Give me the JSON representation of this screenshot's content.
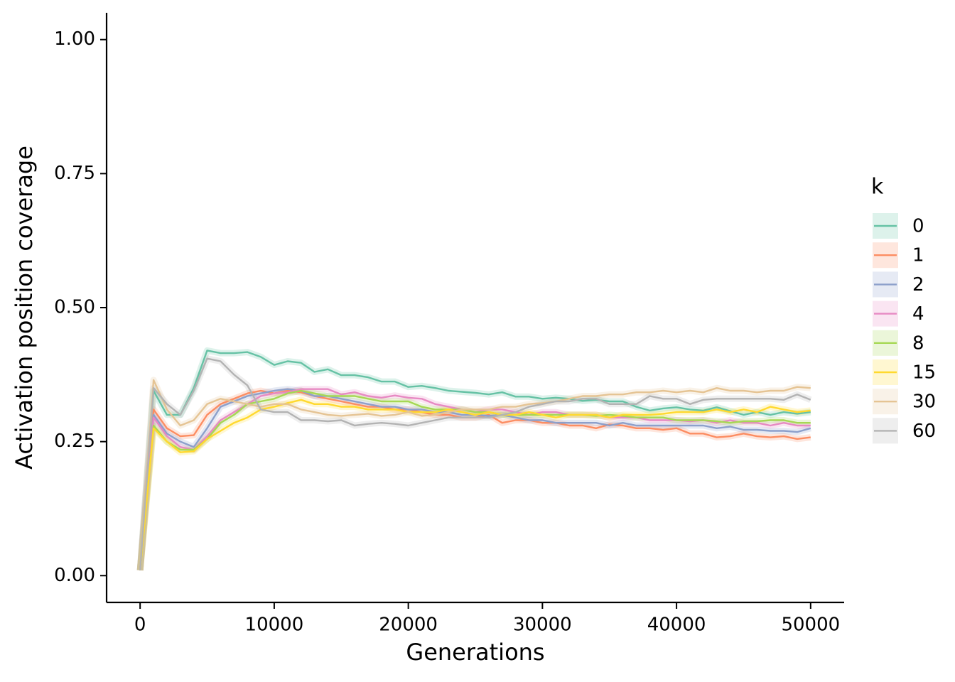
{
  "chart_data": {
    "type": "line",
    "x_label": "Generations",
    "y_label": "Activation position coverage",
    "legend_title": "k",
    "legend": "right",
    "xlim": [
      -2500,
      52500
    ],
    "ylim": [
      -0.05,
      1.05
    ],
    "xticks": [
      0,
      10000,
      20000,
      30000,
      40000,
      50000
    ],
    "yticks": [
      {
        "value": 0,
        "label": "0.00"
      },
      {
        "value": 0.25,
        "label": "0.25"
      },
      {
        "value": 0.5,
        "label": "0.50"
      },
      {
        "value": 0.75,
        "label": "0.75"
      },
      {
        "value": 1,
        "label": "1.00"
      }
    ],
    "x": [
      0,
      1000,
      2000,
      3000,
      4000,
      5000,
      6000,
      7000,
      8000,
      9000,
      10000,
      11000,
      12000,
      13000,
      14000,
      15000,
      16000,
      17000,
      18000,
      19000,
      20000,
      21000,
      22000,
      23000,
      24000,
      25000,
      26000,
      27000,
      28000,
      29000,
      30000,
      31000,
      32000,
      33000,
      34000,
      35000,
      36000,
      37000,
      38000,
      39000,
      40000,
      41000,
      42000,
      43000,
      44000,
      45000,
      46000,
      47000,
      48000,
      49000,
      50000
    ],
    "series": [
      {
        "name": "0",
        "color": "#66c2a5",
        "values": [
          0.01,
          0.345,
          0.3,
          0.3,
          0.35,
          0.42,
          0.415,
          0.415,
          0.417,
          0.408,
          0.393,
          0.4,
          0.397,
          0.38,
          0.385,
          0.374,
          0.374,
          0.37,
          0.362,
          0.362,
          0.352,
          0.354,
          0.35,
          0.345,
          0.343,
          0.341,
          0.338,
          0.342,
          0.334,
          0.334,
          0.33,
          0.332,
          0.33,
          0.326,
          0.328,
          0.325,
          0.325,
          0.315,
          0.308,
          0.312,
          0.314,
          0.31,
          0.308,
          0.314,
          0.307,
          0.3,
          0.305,
          0.3,
          0.305,
          0.302,
          0.305
        ]
      },
      {
        "name": "1",
        "color": "#fc8d62",
        "values": [
          0.01,
          0.31,
          0.275,
          0.26,
          0.262,
          0.3,
          0.32,
          0.33,
          0.34,
          0.345,
          0.34,
          0.345,
          0.342,
          0.335,
          0.33,
          0.325,
          0.32,
          0.315,
          0.315,
          0.31,
          0.31,
          0.305,
          0.3,
          0.3,
          0.295,
          0.295,
          0.3,
          0.285,
          0.29,
          0.29,
          0.285,
          0.285,
          0.28,
          0.28,
          0.275,
          0.282,
          0.28,
          0.275,
          0.275,
          0.272,
          0.275,
          0.265,
          0.265,
          0.258,
          0.26,
          0.265,
          0.26,
          0.258,
          0.26,
          0.255,
          0.258
        ]
      },
      {
        "name": "2",
        "color": "#8da0cb",
        "values": [
          0.01,
          0.3,
          0.265,
          0.25,
          0.24,
          0.275,
          0.315,
          0.325,
          0.335,
          0.34,
          0.345,
          0.348,
          0.345,
          0.335,
          0.335,
          0.33,
          0.325,
          0.32,
          0.315,
          0.315,
          0.31,
          0.31,
          0.305,
          0.305,
          0.3,
          0.3,
          0.298,
          0.3,
          0.295,
          0.29,
          0.29,
          0.285,
          0.285,
          0.285,
          0.285,
          0.28,
          0.285,
          0.28,
          0.28,
          0.28,
          0.28,
          0.28,
          0.28,
          0.275,
          0.278,
          0.272,
          0.272,
          0.27,
          0.27,
          0.268,
          0.275
        ]
      },
      {
        "name": "4",
        "color": "#e78ac3",
        "values": [
          0.01,
          0.295,
          0.26,
          0.24,
          0.235,
          0.26,
          0.29,
          0.305,
          0.32,
          0.335,
          0.34,
          0.342,
          0.348,
          0.348,
          0.348,
          0.338,
          0.342,
          0.335,
          0.332,
          0.336,
          0.332,
          0.33,
          0.32,
          0.315,
          0.31,
          0.305,
          0.31,
          0.31,
          0.305,
          0.3,
          0.305,
          0.305,
          0.3,
          0.3,
          0.3,
          0.295,
          0.295,
          0.295,
          0.29,
          0.29,
          0.29,
          0.288,
          0.29,
          0.285,
          0.29,
          0.285,
          0.285,
          0.28,
          0.285,
          0.28,
          0.28
        ]
      },
      {
        "name": "8",
        "color": "#a6d854",
        "values": [
          0.01,
          0.28,
          0.25,
          0.235,
          0.235,
          0.255,
          0.285,
          0.3,
          0.32,
          0.325,
          0.33,
          0.34,
          0.345,
          0.34,
          0.335,
          0.335,
          0.335,
          0.33,
          0.325,
          0.325,
          0.325,
          0.315,
          0.31,
          0.31,
          0.31,
          0.305,
          0.305,
          0.3,
          0.3,
          0.3,
          0.3,
          0.3,
          0.3,
          0.3,
          0.298,
          0.3,
          0.298,
          0.295,
          0.295,
          0.295,
          0.29,
          0.29,
          0.29,
          0.288,
          0.285,
          0.288,
          0.288,
          0.29,
          0.29,
          0.285,
          0.285
        ]
      },
      {
        "name": "15",
        "color": "#ffd92f",
        "values": [
          0.01,
          0.275,
          0.25,
          0.23,
          0.232,
          0.255,
          0.27,
          0.285,
          0.295,
          0.31,
          0.315,
          0.322,
          0.328,
          0.32,
          0.32,
          0.315,
          0.315,
          0.31,
          0.31,
          0.31,
          0.305,
          0.305,
          0.305,
          0.31,
          0.305,
          0.3,
          0.305,
          0.3,
          0.3,
          0.305,
          0.3,
          0.295,
          0.3,
          0.3,
          0.3,
          0.295,
          0.3,
          0.3,
          0.3,
          0.302,
          0.305,
          0.305,
          0.305,
          0.31,
          0.305,
          0.31,
          0.305,
          0.315,
          0.31,
          0.305,
          0.308
        ]
      },
      {
        "name": "30",
        "color": "#e5c494",
        "values": [
          0.01,
          0.365,
          0.31,
          0.28,
          0.29,
          0.32,
          0.33,
          0.325,
          0.32,
          0.315,
          0.32,
          0.32,
          0.31,
          0.305,
          0.3,
          0.298,
          0.3,
          0.302,
          0.298,
          0.3,
          0.305,
          0.298,
          0.3,
          0.305,
          0.31,
          0.31,
          0.31,
          0.315,
          0.315,
          0.32,
          0.322,
          0.325,
          0.33,
          0.335,
          0.335,
          0.338,
          0.338,
          0.342,
          0.342,
          0.345,
          0.342,
          0.345,
          0.342,
          0.35,
          0.345,
          0.345,
          0.342,
          0.345,
          0.345,
          0.352,
          0.35
        ]
      },
      {
        "name": "60",
        "color": "#b3b3b3",
        "values": [
          0.01,
          0.35,
          0.32,
          0.3,
          0.345,
          0.405,
          0.4,
          0.375,
          0.355,
          0.31,
          0.305,
          0.305,
          0.29,
          0.29,
          0.288,
          0.29,
          0.28,
          0.283,
          0.285,
          0.283,
          0.28,
          0.285,
          0.29,
          0.295,
          0.295,
          0.295,
          0.295,
          0.3,
          0.305,
          0.315,
          0.32,
          0.325,
          0.325,
          0.33,
          0.33,
          0.32,
          0.32,
          0.32,
          0.335,
          0.33,
          0.33,
          0.32,
          0.328,
          0.33,
          0.33,
          0.33,
          0.33,
          0.33,
          0.328,
          0.338,
          0.328
        ]
      }
    ]
  }
}
